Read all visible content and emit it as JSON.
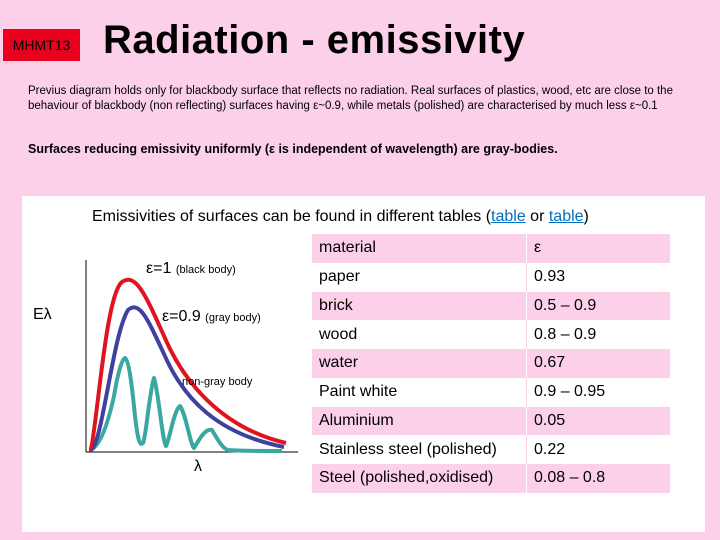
{
  "header": {
    "badge": "MHMT13",
    "title": "Radiation - emissivity"
  },
  "intro": {
    "part1": "Previus diagram holds only for blackbody surface that reflects no radiation. Real surfaces of plastics, wood, etc are close to the behaviour of blackbody (non reflecting) surfaces having ",
    "eps1": "ε",
    "part2": "~0.9, while metals (polished) are characterised by much less ",
    "eps2": "ε",
    "part3": "~0.1"
  },
  "gray_body": {
    "part1": "Surfaces reducing emissivity uniformly (",
    "eps": "ε",
    "part2": " is independent of wavelength) are gray-bodies."
  },
  "panel": {
    "title_prefix": "Emissivities of surfaces can be found in different tables (",
    "link1": "table",
    "or_text": " or ",
    "link2": "table",
    "title_suffix": ")"
  },
  "diagram": {
    "y_axis_label": "Eλ",
    "x_axis_label": "λ",
    "black_body": {
      "eps_text": "ε=1",
      "note": "(black body)"
    },
    "gray_body": {
      "eps_text": "ε=0.9",
      "note": "(gray body)"
    },
    "non_gray_label": "non-gray body",
    "colors": {
      "black_body": "#e0141e",
      "gray_body": "#4040a0",
      "non_gray": "#3aa8a0"
    }
  },
  "table": {
    "header": {
      "material": "material",
      "eps": "ε"
    },
    "rows": [
      {
        "material": "paper",
        "eps": "0.93"
      },
      {
        "material": "brick",
        "eps": "0.5 – 0.9"
      },
      {
        "material": "wood",
        "eps": "0.8 – 0.9"
      },
      {
        "material": "water",
        "eps": "0.67"
      },
      {
        "material": "Paint white",
        "eps": "0.9 – 0.95"
      },
      {
        "material": "Aluminium",
        "eps": "0.05"
      },
      {
        "material": "Stainless steel (polished)",
        "eps": "0.22"
      },
      {
        "material": "Steel (polished,oxidised)",
        "eps": "0.08 – 0.8"
      }
    ]
  }
}
